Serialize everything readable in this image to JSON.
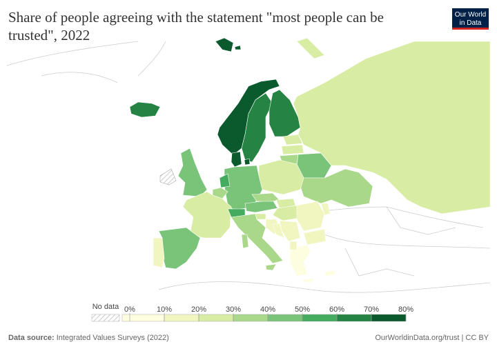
{
  "chart_data": {
    "type": "choropleth",
    "title": "Share of people agreeing with the statement \"most people can be trusted\", 2022",
    "values": [
      72,
      63,
      65,
      74,
      60,
      24,
      22,
      30,
      40,
      25,
      30,
      27,
      42,
      58,
      30,
      45,
      24,
      54,
      45,
      30,
      22,
      21,
      10,
      18,
      30,
      27,
      15,
      12,
      10,
      9,
      40,
      15,
      17,
      13,
      8
    ],
    "legend_ticks": [
      {
        "value": 0,
        "label": "0%"
      },
      {
        "value": 10,
        "label": "10%"
      },
      {
        "value": 20,
        "label": "20%"
      },
      {
        "value": 30,
        "label": "30%"
      },
      {
        "value": 40,
        "label": "40%"
      },
      {
        "value": 50,
        "label": "50%"
      },
      {
        "value": 60,
        "label": "60%"
      },
      {
        "value": 70,
        "label": "70%"
      },
      {
        "value": 80,
        "label": "80%"
      }
    ],
    "colors": [
      "#fdfde0",
      "#f1f6c0",
      "#d8eca3",
      "#a9d88b",
      "#7ac47a",
      "#45ab5e",
      "#258444",
      "#0b5a2e"
    ],
    "no_data_label": "No data"
  },
  "logo": {
    "line1": "Our World",
    "line2": "in Data"
  },
  "footer": {
    "source_label": "Data source:",
    "source": "Integrated Values Surveys (2022)",
    "credit": "OurWorldinData.org/trust | CC BY"
  }
}
